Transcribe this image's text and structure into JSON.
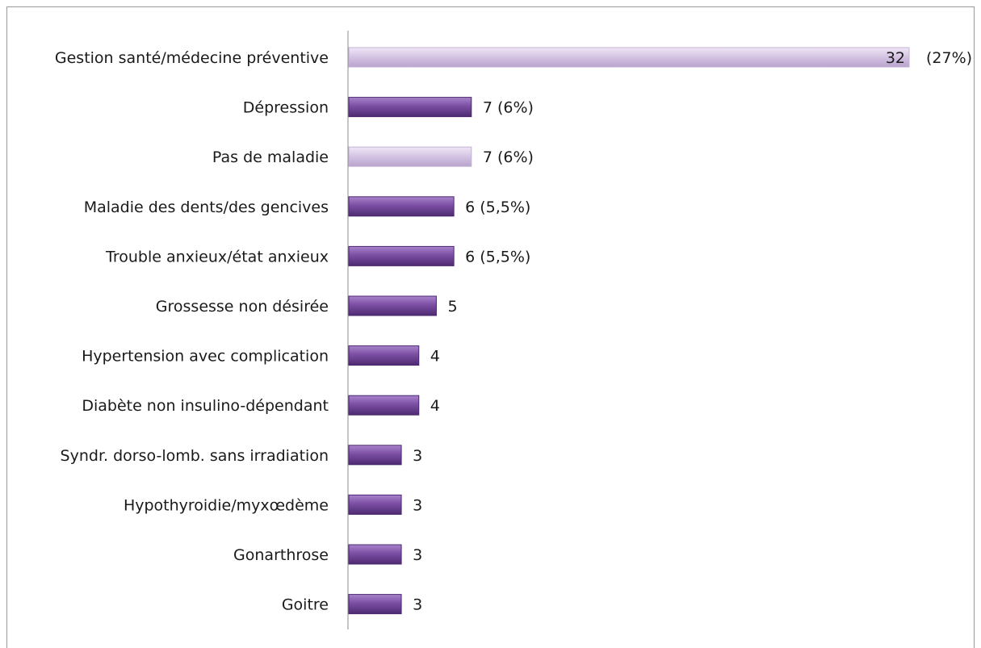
{
  "chart_data": {
    "type": "bar",
    "orientation": "horizontal",
    "categories": [
      "Gestion santé/médecine préventive",
      "Dépression",
      "Pas de maladie",
      "Maladie des dents/des gencives",
      "Trouble anxieux/état anxieux",
      "Grossesse non désirée",
      "Hypertension avec complication",
      "Diabète non insulino-dépendant",
      "Syndr. dorso-lomb. sans irradiation",
      "Hypothyroidie/myxœdème",
      "Gonarthrose",
      "Goitre"
    ],
    "values": [
      32,
      7,
      7,
      6,
      6,
      5,
      4,
      4,
      3,
      3,
      3,
      3
    ],
    "data_labels": [
      "32",
      "7 (6%)",
      "7 (6%)",
      "6 (5,5%)",
      "6 (5,5%)",
      "5",
      "4",
      "4",
      "3",
      "3",
      "3",
      "3"
    ],
    "extra_labels": [
      "(27%)",
      "",
      "",
      "",
      "",
      "",
      "",
      "",
      "",
      "",
      "",
      ""
    ],
    "highlight": [
      true,
      false,
      true,
      false,
      false,
      false,
      false,
      false,
      false,
      false,
      false,
      false
    ],
    "title": "",
    "xlabel": "",
    "ylabel": "",
    "xlim": [
      0,
      32
    ],
    "grid": false,
    "legend": "none",
    "colors": {
      "bar": "#7b4ea3",
      "bar_light": "#cdb9dd",
      "axis": "#8c8c8c",
      "text": "#1a1a1a"
    }
  }
}
